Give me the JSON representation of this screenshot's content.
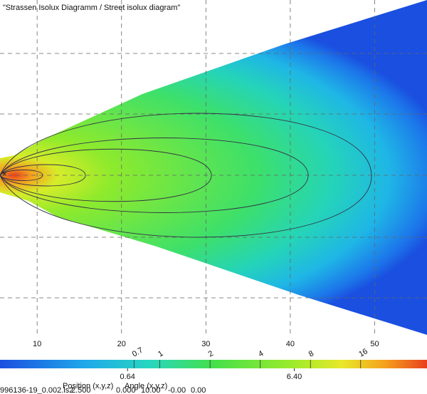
{
  "chart_data": {
    "type": "isolux",
    "title": "\"Strassen Isolux Diagramm / Street isolux diagram\"",
    "xlim": [
      5.6,
      56.2
    ],
    "xticks": [
      10,
      20,
      30,
      40,
      50
    ],
    "colorbar": {
      "log": true,
      "clim": [
        0.11,
        40
      ],
      "contour_levels": [
        0.7,
        1,
        2,
        4,
        8,
        16
      ],
      "ticks": [
        0.64,
        {
          "value": 6.4,
          "label": "6.40"
        }
      ]
    }
  },
  "footer": {
    "position_label": "Position (x,y,z)",
    "angle_label": "Angle (x,y,z)",
    "file": "996136-19_0.002.ls2",
    "values": [
      "2.500",
      "0.000",
      "10.00",
      "-0.00",
      "0.00"
    ]
  }
}
